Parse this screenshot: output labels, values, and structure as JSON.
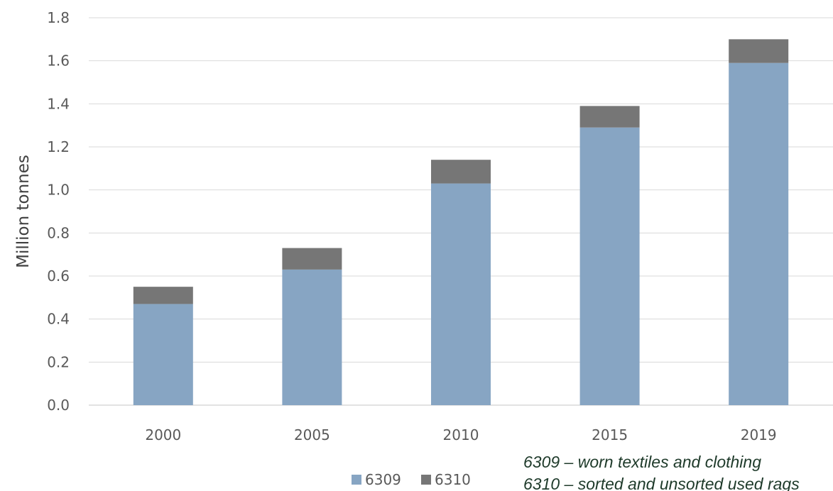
{
  "chart_data": {
    "type": "bar",
    "stacked": true,
    "categories": [
      "2000",
      "2005",
      "2010",
      "2015",
      "2019"
    ],
    "series": [
      {
        "name": "6309",
        "values": [
          0.47,
          0.63,
          1.03,
          1.29,
          1.59
        ],
        "color": "#87a5c3"
      },
      {
        "name": "6310",
        "values": [
          0.08,
          0.1,
          0.11,
          0.1,
          0.11
        ],
        "color": "#767676"
      }
    ],
    "title": "",
    "xlabel": "",
    "ylabel": "Million tonnes",
    "ylim": [
      0,
      1.8
    ],
    "yticks": [
      "0.0",
      "0.2",
      "0.4",
      "0.6",
      "0.8",
      "1.0",
      "1.2",
      "1.4",
      "1.6",
      "1.8"
    ],
    "grid": true,
    "legend": "bottom"
  },
  "notes": [
    "6309 – worn textiles and clothing",
    "6310 – sorted and unsorted used rags"
  ],
  "colors": {
    "grid": "#d9d9d9",
    "tick_text": "#595959",
    "note_text": "#1e3a2a"
  }
}
